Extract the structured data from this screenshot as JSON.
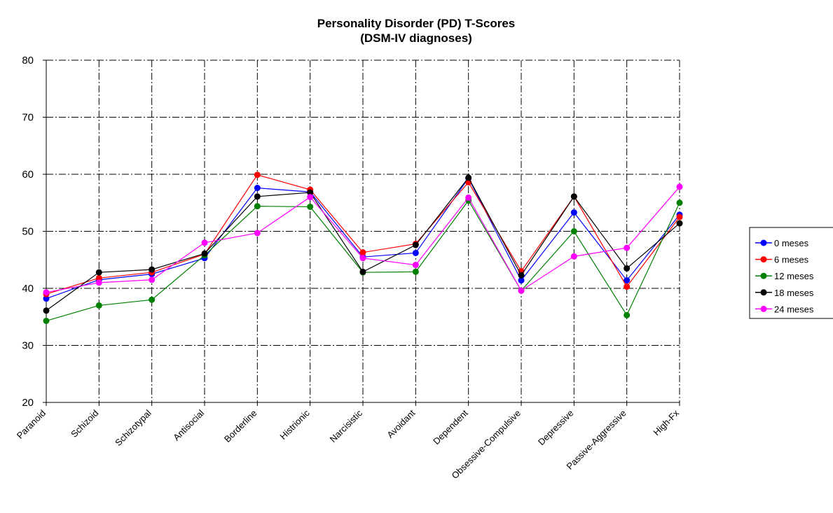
{
  "chart_data": {
    "type": "line",
    "title": "Personality Disorder (PD) T-Scores",
    "subtitle": "(DSM-IV diagnoses)",
    "xlabel": "",
    "ylabel": "",
    "ylim": [
      20,
      80
    ],
    "yticks": [
      "20",
      "30",
      "40",
      "50",
      "60",
      "70",
      "80"
    ],
    "grid": "dash-dot, both axes",
    "legend_position": "right",
    "categories": [
      "Paranoid",
      "Schizoid",
      "Schizotypal",
      "Antisocial",
      "Borderline",
      "Histrionic",
      "Narcisistic",
      "Avoidant",
      "Dependent",
      "Obsessive-Compulsive",
      "Depressive",
      "Passive-Aggressive",
      "High-Fx"
    ],
    "series": [
      {
        "name": "0 meses",
        "color": "#0000ff",
        "values": [
          38.2,
          41.5,
          42.5,
          45.3,
          57.6,
          56.9,
          45.5,
          46.2,
          59.3,
          41.4,
          53.3,
          41.4,
          52.9
        ]
      },
      {
        "name": "6 meses",
        "color": "#ff0000",
        "values": [
          39.0,
          41.8,
          42.8,
          46.0,
          59.9,
          57.3,
          46.3,
          47.8,
          58.6,
          43.0,
          56.1,
          40.3,
          52.5
        ]
      },
      {
        "name": "12 meses",
        "color": "#008000",
        "values": [
          34.3,
          37.0,
          38.0,
          45.8,
          54.4,
          54.3,
          42.8,
          42.9,
          55.4,
          39.6,
          50.0,
          35.3,
          55.0
        ]
      },
      {
        "name": "18 meses",
        "color": "#000000",
        "values": [
          36.1,
          42.8,
          43.3,
          46.1,
          56.1,
          56.8,
          42.9,
          47.6,
          59.4,
          42.3,
          56.1,
          43.5,
          51.4
        ]
      },
      {
        "name": "24 meses",
        "color": "#ff00ff",
        "values": [
          39.3,
          41.0,
          41.5,
          48.0,
          49.7,
          56.0,
          45.3,
          44.1,
          55.9,
          39.6,
          45.6,
          47.1,
          57.8
        ]
      }
    ]
  }
}
